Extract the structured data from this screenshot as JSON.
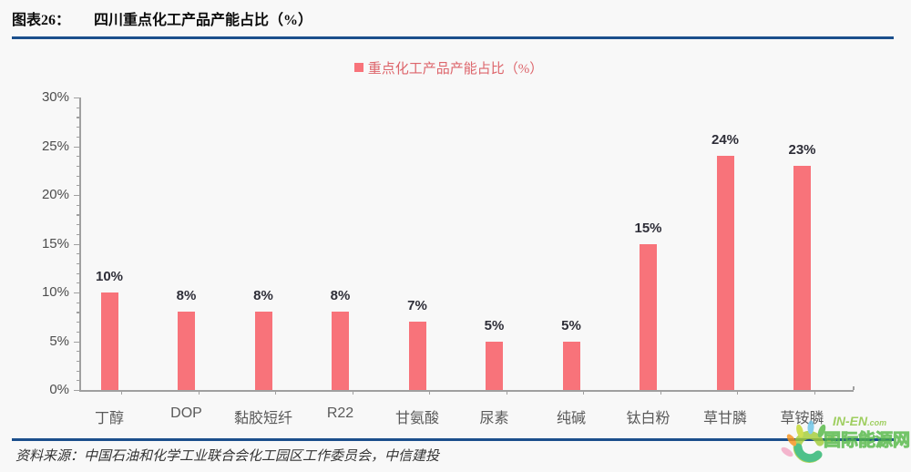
{
  "header": {
    "tag": "图表26：",
    "title": "四川重点化工产品产能占比（%）"
  },
  "legend": {
    "label": "重点化工产品产能占比（%）"
  },
  "chart_data": {
    "type": "bar",
    "title": "四川重点化工产品产能占比（%）",
    "legend_entries": [
      "重点化工产品产能占比（%）"
    ],
    "legend_position": "top-center",
    "categories": [
      "丁醇",
      "DOP",
      "黏胶短纤",
      "R22",
      "甘氨酸",
      "尿素",
      "纯碱",
      "钛白粉",
      "草甘膦",
      "草铵膦"
    ],
    "values": [
      10,
      8,
      8,
      8,
      7,
      5,
      5,
      15,
      24,
      23
    ],
    "data_labels": [
      "10%",
      "8%",
      "8%",
      "8%",
      "7%",
      "5%",
      "5%",
      "15%",
      "24%",
      "23%"
    ],
    "xlabel": "",
    "ylabel": "",
    "ylim": [
      0,
      30
    ],
    "ytick_step": 5,
    "minor_tick_step": 1,
    "yticks": [
      {
        "label": "30%",
        "value": 30
      },
      {
        "label": "25%",
        "value": 25
      },
      {
        "label": "20%",
        "value": 20
      },
      {
        "label": "15%",
        "value": 15
      },
      {
        "label": "10%",
        "value": 10
      },
      {
        "label": "5%",
        "value": 5
      },
      {
        "label": "0%",
        "value": 0
      }
    ],
    "grid": false,
    "bar_color": "#F8737A"
  },
  "source": {
    "label": "资料来源：",
    "text": "中国石油和化学工业联合会化工园区工作委员会，中信建投"
  },
  "watermark": {
    "brand": "IN-EN",
    "brand_suffix": ".com",
    "brand_cn": "国际能源网",
    "color": "#55B948"
  },
  "colors": {
    "rule_blue": "#1B4F8C",
    "axis": "#A0A0A0",
    "bar": "#F8737A",
    "ytick_label": "#4D4D4D",
    "category_label": "#5A5A5A",
    "data_label": "#2E2E38",
    "legend_text": "#DD656B",
    "background": "#F8F8F8"
  }
}
